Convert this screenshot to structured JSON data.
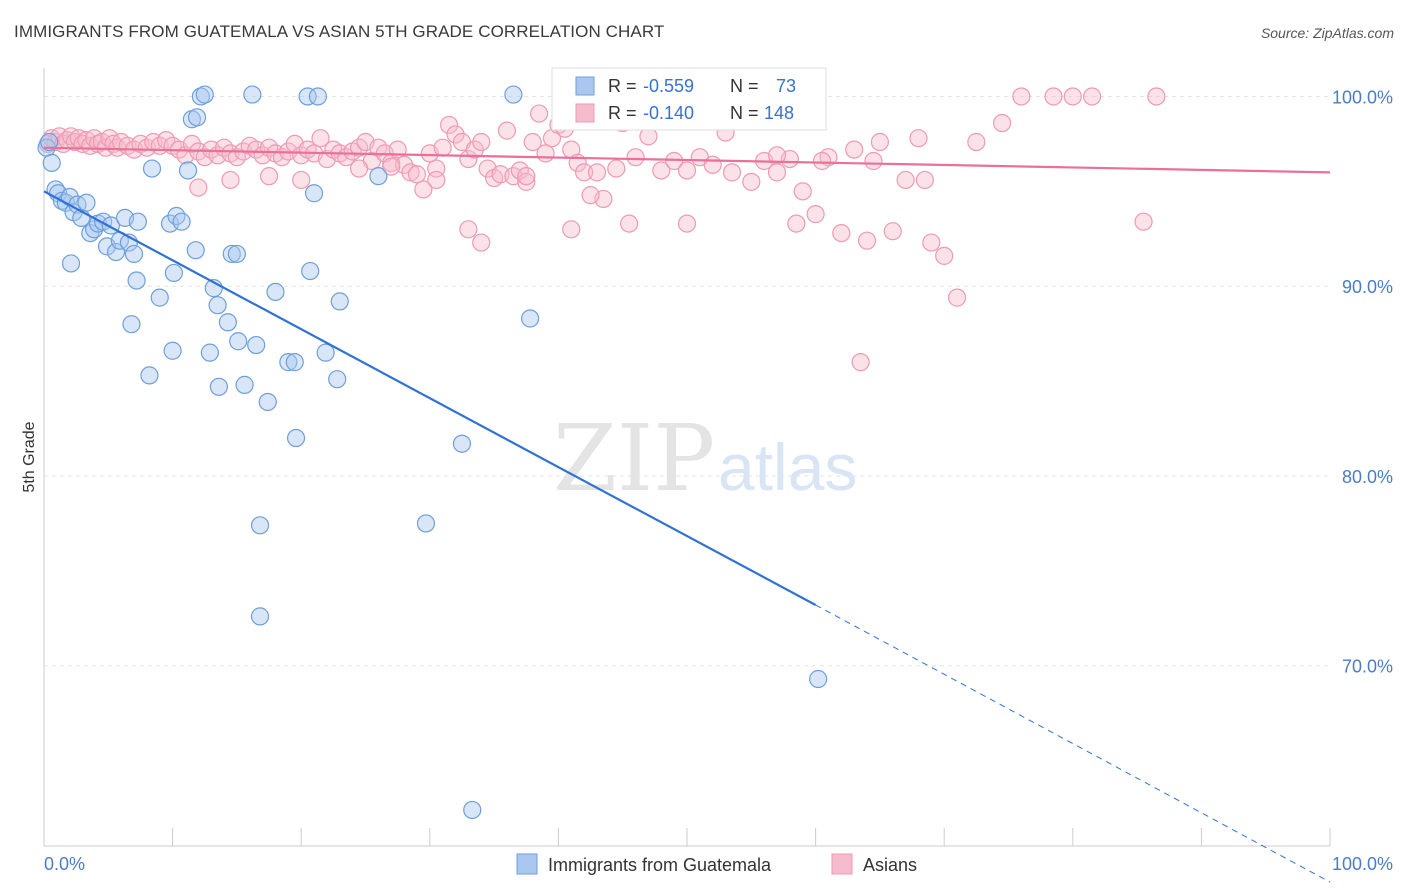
{
  "title": "IMMIGRANTS FROM GUATEMALA VS ASIAN 5TH GRADE CORRELATION CHART",
  "source": "Source: ZipAtlas.com",
  "watermark": {
    "zip": "ZIP",
    "atlas": "atlas"
  },
  "colors": {
    "blue_fill": "#a9c7ef",
    "blue_stroke": "#6f9fdb",
    "blue_line": "#2f72d4",
    "pink_fill": "#f6bccd",
    "pink_stroke": "#ee9ab3",
    "pink_line": "#e8709a",
    "axis_text": "#4a7cc9",
    "grid": "#e3e3e3"
  },
  "stats_box": {
    "r_label": "R =",
    "n_label": "N =",
    "rows": [
      {
        "series": "Immigrants from Guatemala",
        "r": "-0.559",
        "n": "73"
      },
      {
        "series": "Asians",
        "r": "-0.140",
        "n": "148"
      }
    ]
  },
  "chart_data": {
    "type": "scatter",
    "title": "IMMIGRANTS FROM GUATEMALA VS ASIAN 5TH GRADE CORRELATION CHART",
    "xlabel": "",
    "ylabel": "5th Grade",
    "xlim": [
      0,
      100
    ],
    "ylim": [
      60.5,
      101.5
    ],
    "x_tick_labels": [
      "0.0%",
      "100.0%"
    ],
    "y_ticks": [
      {
        "value": 100,
        "label": "100.0%"
      },
      {
        "value": 90,
        "label": "90.0%"
      },
      {
        "value": 80,
        "label": "80.0%"
      },
      {
        "value": 70,
        "label": "70.0%"
      }
    ],
    "grid": true,
    "legend_position": "bottom-center",
    "series": [
      {
        "name": "Immigrants from Guatemala",
        "color": "#a9c7ef",
        "r": -0.559,
        "n": 73,
        "trend": {
          "x0": 0,
          "y0": 95.0,
          "x1": 60,
          "y1": 73.2,
          "dash_to_x": 100,
          "dash_to_y": 58.6
        },
        "points": [
          [
            0.2,
            97.3
          ],
          [
            0.4,
            97.6
          ],
          [
            0.6,
            96.5
          ],
          [
            0.9,
            95.1
          ],
          [
            1.1,
            94.9
          ],
          [
            1.4,
            94.5
          ],
          [
            1.7,
            94.4
          ],
          [
            2.0,
            94.7
          ],
          [
            2.3,
            93.9
          ],
          [
            2.6,
            94.3
          ],
          [
            2.9,
            93.6
          ],
          [
            3.3,
            94.4
          ],
          [
            3.6,
            92.8
          ],
          [
            3.9,
            93.0
          ],
          [
            4.2,
            93.3
          ],
          [
            4.6,
            93.4
          ],
          [
            4.9,
            92.1
          ],
          [
            5.2,
            93.2
          ],
          [
            5.6,
            91.8
          ],
          [
            5.9,
            92.4
          ],
          [
            6.3,
            93.6
          ],
          [
            6.6,
            92.3
          ],
          [
            7.0,
            91.7
          ],
          [
            7.3,
            93.4
          ],
          [
            8.4,
            96.2
          ],
          [
            9.8,
            93.3
          ],
          [
            10.3,
            93.7
          ],
          [
            10.7,
            93.4
          ],
          [
            11.2,
            96.1
          ],
          [
            11.5,
            98.8
          ],
          [
            11.9,
            98.9
          ],
          [
            12.2,
            100.0
          ],
          [
            12.5,
            100.1
          ],
          [
            16.2,
            100.1
          ],
          [
            20.5,
            100.0
          ],
          [
            21.3,
            100.0
          ],
          [
            36.5,
            100.1
          ],
          [
            2.1,
            91.2
          ],
          [
            6.8,
            88.0
          ],
          [
            7.2,
            90.3
          ],
          [
            9.0,
            89.4
          ],
          [
            10.1,
            90.7
          ],
          [
            11.8,
            91.9
          ],
          [
            13.2,
            89.9
          ],
          [
            13.5,
            89.0
          ],
          [
            14.3,
            88.1
          ],
          [
            15.1,
            87.1
          ],
          [
            16.5,
            86.9
          ],
          [
            17.4,
            83.9
          ],
          [
            19.0,
            86.0
          ],
          [
            19.5,
            86.0
          ],
          [
            21.9,
            86.5
          ],
          [
            22.8,
            85.1
          ],
          [
            23.0,
            89.2
          ],
          [
            10.0,
            86.6
          ],
          [
            12.9,
            86.5
          ],
          [
            8.2,
            85.3
          ],
          [
            14.6,
            91.7
          ],
          [
            15.0,
            91.7
          ],
          [
            18.0,
            89.7
          ],
          [
            20.7,
            90.8
          ],
          [
            21.0,
            94.9
          ],
          [
            26.0,
            95.8
          ],
          [
            37.8,
            88.3
          ],
          [
            13.6,
            84.7
          ],
          [
            15.6,
            84.8
          ],
          [
            19.6,
            82.0
          ],
          [
            32.5,
            81.7
          ],
          [
            16.8,
            77.4
          ],
          [
            29.7,
            77.5
          ],
          [
            16.8,
            72.6
          ],
          [
            60.2,
            69.3
          ],
          [
            33.3,
            62.4
          ]
        ]
      },
      {
        "name": "Asians",
        "color": "#f6bccd",
        "r": -0.14,
        "n": 148,
        "trend": {
          "x0": 0,
          "y0": 97.3,
          "x1": 100,
          "y1": 96.0
        },
        "points": [
          [
            0.3,
            97.5
          ],
          [
            0.6,
            97.8
          ],
          [
            0.9,
            97.6
          ],
          [
            1.2,
            97.9
          ],
          [
            1.5,
            97.5
          ],
          [
            1.8,
            97.7
          ],
          [
            2.1,
            97.9
          ],
          [
            2.4,
            97.6
          ],
          [
            2.7,
            97.8
          ],
          [
            3.0,
            97.5
          ],
          [
            3.3,
            97.7
          ],
          [
            3.6,
            97.4
          ],
          [
            3.9,
            97.8
          ],
          [
            4.2,
            97.5
          ],
          [
            4.5,
            97.6
          ],
          [
            4.8,
            97.3
          ],
          [
            5.1,
            97.8
          ],
          [
            5.4,
            97.5
          ],
          [
            5.7,
            97.3
          ],
          [
            6.0,
            97.6
          ],
          [
            6.5,
            97.4
          ],
          [
            7.0,
            97.2
          ],
          [
            7.5,
            97.5
          ],
          [
            8.0,
            97.3
          ],
          [
            8.5,
            97.6
          ],
          [
            9.0,
            97.4
          ],
          [
            9.5,
            97.7
          ],
          [
            10.0,
            97.4
          ],
          [
            10.5,
            97.2
          ],
          [
            11.0,
            96.9
          ],
          [
            11.5,
            97.5
          ],
          [
            12.0,
            97.1
          ],
          [
            12.5,
            96.8
          ],
          [
            13.0,
            97.2
          ],
          [
            13.5,
            96.9
          ],
          [
            14.0,
            97.3
          ],
          [
            14.5,
            97.0
          ],
          [
            15.0,
            96.8
          ],
          [
            15.5,
            97.1
          ],
          [
            16.0,
            97.4
          ],
          [
            16.5,
            97.2
          ],
          [
            17.0,
            96.9
          ],
          [
            17.5,
            97.3
          ],
          [
            18.0,
            97.0
          ],
          [
            18.5,
            96.8
          ],
          [
            19.0,
            97.1
          ],
          [
            19.5,
            97.5
          ],
          [
            20.0,
            96.9
          ],
          [
            20.5,
            97.2
          ],
          [
            21.0,
            97.0
          ],
          [
            21.5,
            97.8
          ],
          [
            22.0,
            96.7
          ],
          [
            22.5,
            97.2
          ],
          [
            23.0,
            97.0
          ],
          [
            23.5,
            96.8
          ],
          [
            24.0,
            97.1
          ],
          [
            24.5,
            97.3
          ],
          [
            25.0,
            97.6
          ],
          [
            25.5,
            96.6
          ],
          [
            26.0,
            97.3
          ],
          [
            26.5,
            97.0
          ],
          [
            27.0,
            96.5
          ],
          [
            27.5,
            97.2
          ],
          [
            28.0,
            96.4
          ],
          [
            28.5,
            96.0
          ],
          [
            29.0,
            95.9
          ],
          [
            29.5,
            95.1
          ],
          [
            30.0,
            97.0
          ],
          [
            30.5,
            96.2
          ],
          [
            31.0,
            97.3
          ],
          [
            31.5,
            98.5
          ],
          [
            32.0,
            98.0
          ],
          [
            32.5,
            97.6
          ],
          [
            33.0,
            96.7
          ],
          [
            33.5,
            97.2
          ],
          [
            34.0,
            97.6
          ],
          [
            34.5,
            96.2
          ],
          [
            35.0,
            95.7
          ],
          [
            35.5,
            95.9
          ],
          [
            36.0,
            98.2
          ],
          [
            36.5,
            95.8
          ],
          [
            37.0,
            96.1
          ],
          [
            37.5,
            95.5
          ],
          [
            38.0,
            97.6
          ],
          [
            38.5,
            99.1
          ],
          [
            39.0,
            97.0
          ],
          [
            39.5,
            97.8
          ],
          [
            40.0,
            98.5
          ],
          [
            40.5,
            98.3
          ],
          [
            41.0,
            97.2
          ],
          [
            41.5,
            96.5
          ],
          [
            42.0,
            96.0
          ],
          [
            43.0,
            96.0
          ],
          [
            43.5,
            94.6
          ],
          [
            44.5,
            96.2
          ],
          [
            45.0,
            98.6
          ],
          [
            46.0,
            96.8
          ],
          [
            47.0,
            97.9
          ],
          [
            48.0,
            96.1
          ],
          [
            49.0,
            96.6
          ],
          [
            50.0,
            96.1
          ],
          [
            51.0,
            96.8
          ],
          [
            52.0,
            96.4
          ],
          [
            53.0,
            98.1
          ],
          [
            54.0,
            99.1
          ],
          [
            55.0,
            95.5
          ],
          [
            56.0,
            96.6
          ],
          [
            57.0,
            96.0
          ],
          [
            58.0,
            96.7
          ],
          [
            58.5,
            93.3
          ],
          [
            59.0,
            95.0
          ],
          [
            60.0,
            93.8
          ],
          [
            61.0,
            96.8
          ],
          [
            62.0,
            92.8
          ],
          [
            63.0,
            97.2
          ],
          [
            64.0,
            92.4
          ],
          [
            65.0,
            97.6
          ],
          [
            66.0,
            92.9
          ],
          [
            67.0,
            95.6
          ],
          [
            68.0,
            97.8
          ],
          [
            69.0,
            92.3
          ],
          [
            70.0,
            91.6
          ],
          [
            71.0,
            89.4
          ],
          [
            72.5,
            97.6
          ],
          [
            74.5,
            98.6
          ],
          [
            76.0,
            100.0
          ],
          [
            78.5,
            100.0
          ],
          [
            80.0,
            100.0
          ],
          [
            81.5,
            100.0
          ],
          [
            86.5,
            100.0
          ],
          [
            85.5,
            93.4
          ],
          [
            63.5,
            86.0
          ],
          [
            34.0,
            92.3
          ],
          [
            33.0,
            93.0
          ],
          [
            41.0,
            93.0
          ],
          [
            45.5,
            93.3
          ],
          [
            50.0,
            93.3
          ],
          [
            42.5,
            94.8
          ],
          [
            12.0,
            95.2
          ],
          [
            14.5,
            95.6
          ],
          [
            17.5,
            95.8
          ],
          [
            20.0,
            95.6
          ],
          [
            24.5,
            96.2
          ],
          [
            27.0,
            96.3
          ],
          [
            30.5,
            95.6
          ],
          [
            37.5,
            95.8
          ],
          [
            53.5,
            96.0
          ],
          [
            57.0,
            96.9
          ],
          [
            60.5,
            96.6
          ],
          [
            64.5,
            96.6
          ],
          [
            68.5,
            95.6
          ]
        ]
      }
    ]
  }
}
